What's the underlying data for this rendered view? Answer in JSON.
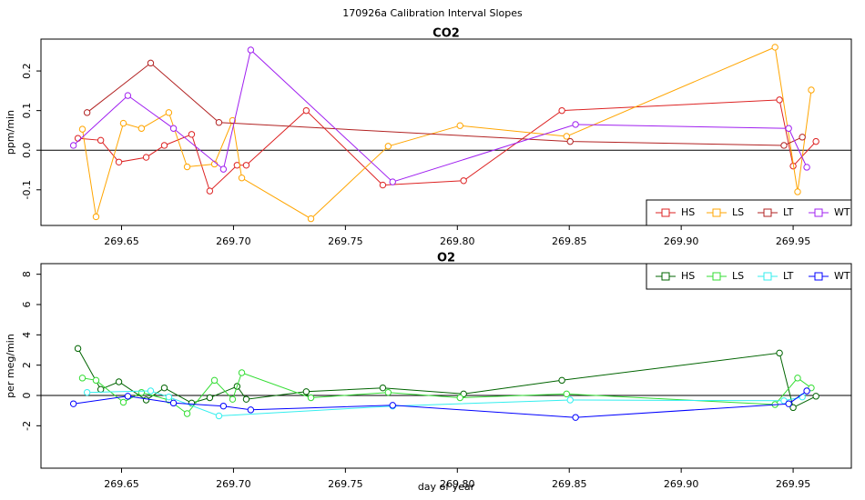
{
  "title": "170926a   Calibration Interval Slopes",
  "chart_data": [
    {
      "type": "line",
      "title": "CO2",
      "y_label": "ppm/min",
      "xlim": [
        269.614,
        269.976
      ],
      "ylim": [
        -0.19,
        0.2805
      ],
      "hline": 0,
      "legend": "bottomright",
      "xticks": [
        269.65,
        {
          "value": 269.7,
          "label": "269.70"
        },
        269.75,
        {
          "value": 269.8,
          "label": "269.80"
        },
        269.85,
        {
          "value": 269.9,
          "label": "269.90"
        },
        269.95
      ],
      "yticks": [
        -0.1,
        {
          "value": 0,
          "label": "0.0"
        },
        0.1,
        0.2
      ],
      "series": [
        {
          "name": "HS",
          "color": "#dd2222",
          "x": [
            269.6305,
            269.6407,
            269.6488,
            269.661,
            269.6691,
            269.6813,
            269.6894,
            269.7016,
            269.7057,
            269.7325,
            269.7667,
            269.8028,
            269.8467,
            269.9439,
            269.95,
            269.9602
          ],
          "values": [
            0.03,
            0.025,
            -0.03,
            -0.018,
            0.012,
            0.04,
            -0.103,
            -0.038,
            -0.038,
            0.1,
            -0.088,
            -0.077,
            0.1,
            0.127,
            -0.04,
            0.022
          ]
        },
        {
          "name": "LS",
          "color": "#ffa500",
          "x": [
            269.6325,
            269.6386,
            269.6508,
            269.6589,
            269.6711,
            269.6793,
            269.6915,
            269.6996,
            269.7037,
            269.7346,
            269.7691,
            269.8012,
            269.8488,
            269.9419,
            269.952,
            269.9581
          ],
          "values": [
            0.053,
            -0.168,
            0.068,
            0.055,
            0.095,
            -0.042,
            -0.035,
            0.075,
            -0.07,
            -0.173,
            0.01,
            0.062,
            0.035,
            0.26,
            -0.105,
            0.152
          ]
        },
        {
          "name": "LT",
          "color": "#b22222",
          "x": [
            269.6346,
            269.663,
            269.6935,
            269.8504,
            269.9459,
            269.9541
          ],
          "values": [
            0.095,
            0.22,
            0.07,
            0.022,
            0.012,
            0.033
          ]
        },
        {
          "name": "WT",
          "color": "#a020f0",
          "x": [
            269.6285,
            269.6528,
            269.6732,
            269.6955,
            269.7077,
            269.7711,
            269.8528,
            269.948,
            269.9561
          ],
          "values": [
            0.012,
            0.138,
            0.055,
            -0.048,
            0.253,
            -0.08,
            0.065,
            0.055,
            -0.043
          ]
        }
      ]
    },
    {
      "type": "line",
      "title": "O2",
      "y_label": "per meg/min",
      "x_label": "day of year",
      "xlim": [
        269.614,
        269.976
      ],
      "ylim": [
        -4.8,
        8.7
      ],
      "hline": 0,
      "legend": "topright",
      "xticks": [
        269.65,
        {
          "value": 269.7,
          "label": "269.70"
        },
        269.75,
        {
          "value": 269.8,
          "label": "269.80"
        },
        269.85,
        {
          "value": 269.9,
          "label": "269.90"
        },
        269.95
      ],
      "yticks": [
        -2,
        0,
        2,
        4,
        6,
        8
      ],
      "series": [
        {
          "name": "HS",
          "color": "#006400",
          "x": [
            269.6305,
            269.6407,
            269.6488,
            269.661,
            269.6691,
            269.6813,
            269.6894,
            269.7016,
            269.7057,
            269.7325,
            269.7667,
            269.8028,
            269.8467,
            269.9439,
            269.95,
            269.9602
          ],
          "values": [
            3.1,
            0.4,
            0.9,
            -0.3,
            0.5,
            -0.5,
            -0.15,
            0.6,
            -0.25,
            0.25,
            0.5,
            0.1,
            1.0,
            2.8,
            -0.8,
            -0.05
          ]
        },
        {
          "name": "LS",
          "color": "#33dd33",
          "x": [
            269.6325,
            269.6386,
            269.6508,
            269.6589,
            269.6711,
            269.6793,
            269.6915,
            269.6996,
            269.7037,
            269.7346,
            269.7691,
            269.8012,
            269.8488,
            269.9419,
            269.952,
            269.9581
          ],
          "values": [
            1.15,
            1.0,
            -0.45,
            0.2,
            -0.3,
            -1.2,
            1.0,
            -0.25,
            1.5,
            -0.15,
            0.2,
            -0.15,
            0.1,
            -0.6,
            1.15,
            0.5
          ]
        },
        {
          "name": "LT",
          "color": "#33eeee",
          "x": [
            269.6346,
            269.663,
            269.6711,
            269.6935,
            269.7711,
            269.8504,
            269.9459,
            269.9541
          ],
          "values": [
            0.2,
            0.3,
            -0.1,
            -1.35,
            -0.7,
            -0.3,
            -0.35,
            -0.1
          ]
        },
        {
          "name": "WT",
          "color": "#0000ff",
          "x": [
            269.6285,
            269.6528,
            269.6732,
            269.6955,
            269.7077,
            269.7711,
            269.8528,
            269.948,
            269.9561
          ],
          "values": [
            -0.55,
            -0.05,
            -0.5,
            -0.7,
            -0.95,
            -0.65,
            -1.45,
            -0.55,
            0.3
          ]
        }
      ]
    }
  ]
}
